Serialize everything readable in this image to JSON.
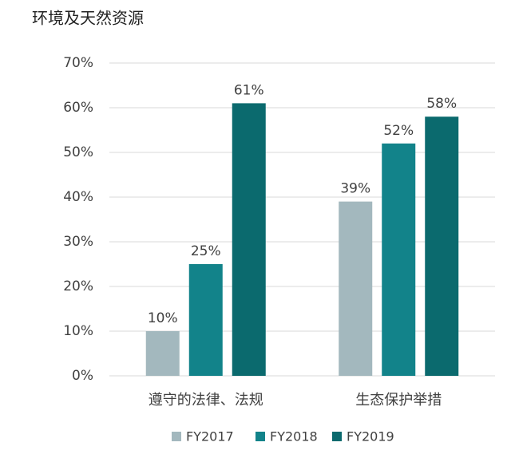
{
  "chart_data": {
    "type": "bar",
    "title": "环境及天然资源",
    "categories": [
      "遵守的法律、法规",
      "生态保护举措"
    ],
    "series": [
      {
        "name": "FY2017",
        "color": "#a3b8be",
        "values": [
          10,
          39
        ],
        "value_labels": [
          "10%",
          "39%"
        ]
      },
      {
        "name": "FY2018",
        "color": "#12838a",
        "values": [
          25,
          52
        ],
        "value_labels": [
          "25%",
          "52%"
        ]
      },
      {
        "name": "FY2019",
        "color": "#0b6a6e",
        "values": [
          61,
          58
        ],
        "value_labels": [
          "61%",
          "58%"
        ]
      }
    ],
    "ylim": [
      0,
      70
    ],
    "yticks": [
      {
        "value": 0,
        "label": "0%"
      },
      {
        "value": 10,
        "label": "10%"
      },
      {
        "value": 20,
        "label": "20%"
      },
      {
        "value": 30,
        "label": "30%"
      },
      {
        "value": 40,
        "label": "40%"
      },
      {
        "value": 50,
        "label": "50%"
      },
      {
        "value": 60,
        "label": "60%"
      },
      {
        "value": 70,
        "label": "70%"
      }
    ],
    "grid": true,
    "legend": "bottom"
  }
}
